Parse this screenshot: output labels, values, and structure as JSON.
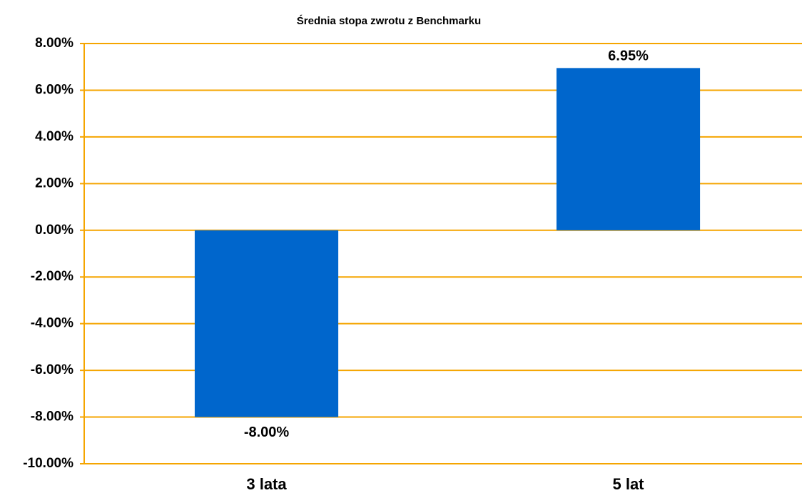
{
  "chart_data": {
    "type": "bar",
    "title": "Średnia stopa zwrotu z Benchmarku",
    "categories": [
      "3 lata",
      "5 lat"
    ],
    "values": [
      -8.0,
      6.95
    ],
    "value_labels": [
      "-8.00%",
      "6.95%"
    ],
    "color": "#0066cc",
    "ylim": [
      -10,
      8
    ],
    "yticks": [
      {
        "value": -10,
        "label": "-10.00%"
      },
      {
        "value": -8,
        "label": "-8.00%"
      },
      {
        "value": -6,
        "label": "-6.00%"
      },
      {
        "value": -4,
        "label": "-4.00%"
      },
      {
        "value": -2,
        "label": "-2.00%"
      },
      {
        "value": 0,
        "label": "0.00%"
      },
      {
        "value": 2,
        "label": "2.00%"
      },
      {
        "value": 4,
        "label": "4.00%"
      },
      {
        "value": 6,
        "label": "6.00%"
      },
      {
        "value": 8,
        "label": "8.00%"
      }
    ],
    "grid": true,
    "grid_color": "#f5a500"
  }
}
